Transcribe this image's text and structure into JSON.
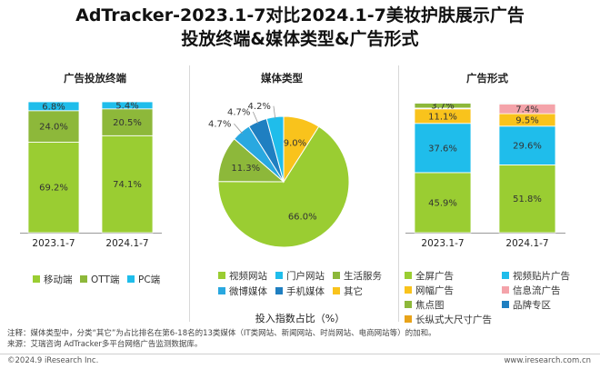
{
  "title_line1": "AdTracker-2023.1-7对比2024.1-7美妆护肤展示广告",
  "title_line2": "投放终端&媒体类型&广告形式",
  "x_caption": "投入指数占比（%）",
  "notes": {
    "note": "注释：媒体类型中，分类“其它”为占比排名在第6-18名的13类媒体（IT类网站、新闻网站、时尚网站、电商网站等）的加和。",
    "source": "来源：艾瑞咨询 AdTracker多平台网络广告监测数据库。"
  },
  "footer": {
    "left": "©2024.9 iResearch Inc.",
    "right": "www.iresearch.com.cn"
  },
  "chart_data": [
    {
      "type": "bar",
      "stacked": true,
      "title": "广告投放终端",
      "categories": [
        "2023.1-7",
        "2024.1-7"
      ],
      "ylim": [
        0,
        100
      ],
      "series": [
        {
          "name": "移动端",
          "values": [
            69.2,
            74.1
          ],
          "color": "#9ACD32"
        },
        {
          "name": "OTT端",
          "values": [
            24.0,
            20.5
          ],
          "color": "#8DB83A"
        },
        {
          "name": "PC端",
          "values": [
            6.8,
            5.4
          ],
          "color": "#1FBDEB"
        }
      ],
      "labels": [
        [
          "69.2%",
          "74.1%"
        ],
        [
          "24.0%",
          "20.5%"
        ],
        [
          "6.8%",
          "5.4%"
        ]
      ],
      "legend": "bottom"
    },
    {
      "type": "pie",
      "title": "媒体类型",
      "slices": [
        {
          "name": "视频网站",
          "value": 66.0,
          "label": "66.0%",
          "color": "#9ACD32"
        },
        {
          "name": "门户网站",
          "value": 4.2,
          "label": "4.2%",
          "color": "#1FBDEB"
        },
        {
          "name": "生活服务",
          "value": 11.3,
          "label": "11.3%",
          "color": "#8DB83A"
        },
        {
          "name": "微博媒体",
          "value": 4.7,
          "label": "4.7%",
          "color": "#29A8E0"
        },
        {
          "name": "手机媒体",
          "value": 4.7,
          "label": "4.7%",
          "color": "#1F7FC1"
        },
        {
          "name": "其它",
          "value": 9.0,
          "label": "9.0%",
          "color": "#F9C31C"
        }
      ],
      "legend": "bottom"
    },
    {
      "type": "bar",
      "stacked": true,
      "title": "广告形式",
      "categories": [
        "2023.1-7",
        "2024.1-7"
      ],
      "ylim": [
        0,
        100
      ],
      "series": [
        {
          "name": "全屏广告",
          "values": [
            45.9,
            51.8
          ],
          "color": "#9ACD32"
        },
        {
          "name": "视频贴片广告",
          "values": [
            37.6,
            29.6
          ],
          "color": "#1FBDEB"
        },
        {
          "name": "网幅广告",
          "values": [
            11.1,
            9.5
          ],
          "color": "#F9C31C"
        },
        {
          "name": "信息流广告",
          "values": [
            0.6,
            7.4
          ],
          "color": "#F4A3AA"
        },
        {
          "name": "焦点图",
          "values": [
            3.7,
            0.6
          ],
          "color": "#8DB83A"
        },
        {
          "name": "品牌专区",
          "values": [
            0.6,
            0.6
          ],
          "color": "#1F7FC1"
        },
        {
          "name": "长纵式大尺寸广告",
          "values": [
            0.5,
            0.5
          ],
          "color": "#E8A31A"
        }
      ],
      "labels": [
        [
          "45.9%",
          "51.8%"
        ],
        [
          "37.6%",
          "29.6%"
        ],
        [
          "11.1%",
          "9.5%"
        ],
        [
          "",
          "7.4%"
        ],
        [
          "3.7%",
          ""
        ],
        [
          "",
          ""
        ],
        [
          "",
          ""
        ]
      ],
      "legend": "bottom"
    }
  ]
}
